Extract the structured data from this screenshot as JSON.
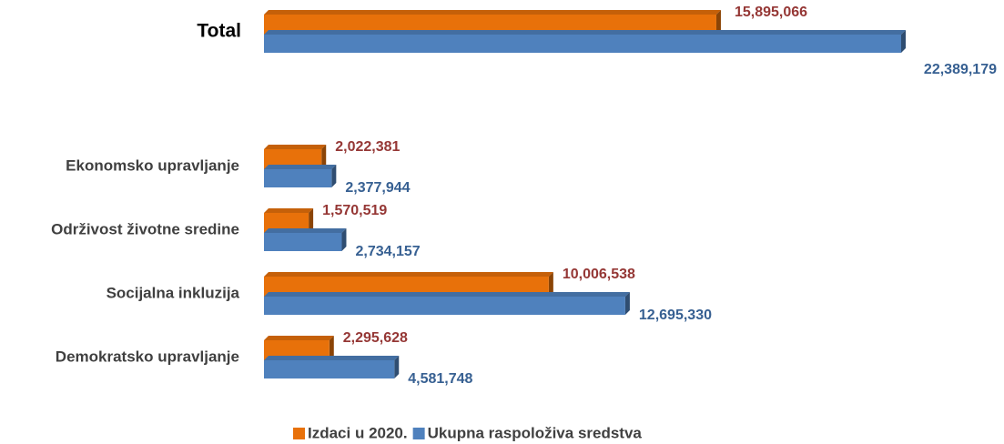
{
  "chart_data": {
    "type": "bar",
    "orientation": "horizontal",
    "categories": [
      "Total",
      "Ekonomsko upravljanje",
      "Održivost životne sredine",
      "Socijalna inkluzija",
      "Demokratsko upravljanje"
    ],
    "series": [
      {
        "name": "Izdaci u 2020.",
        "color": "#e8710a",
        "label_color": "#953735",
        "values": [
          15895066,
          2022381,
          1570519,
          10006538,
          2295628
        ],
        "value_labels": [
          "15,895,066",
          "2,022,381",
          "1,570,519",
          "10,006,538",
          "2,295,628"
        ]
      },
      {
        "name": "Ukupna raspoloživa sredstva",
        "color": "#4f81bd",
        "label_color": "#376092",
        "values": [
          22389179,
          2377944,
          2734157,
          12695330,
          4581748
        ],
        "value_labels": [
          "22,389,179",
          "2,377,944",
          "2,734,157",
          "12,695,330",
          "4,581,748"
        ]
      }
    ],
    "legend": "bottom"
  }
}
